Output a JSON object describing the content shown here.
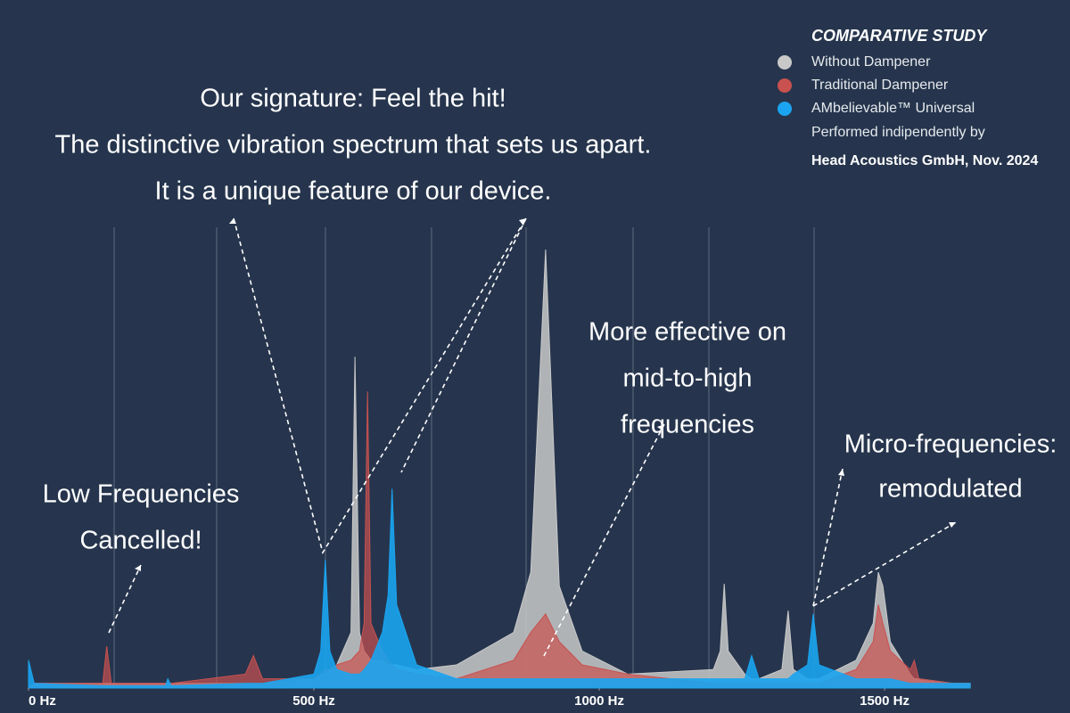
{
  "chart_data": {
    "type": "area",
    "headline": [
      "Our signature: Feel the hit!",
      "The distinctive vibration spectrum that sets us apart.",
      "It is a unique feature of our device."
    ],
    "annotations": [
      [
        "Low Frequencies",
        "Cancelled!"
      ],
      [
        "More effective on",
        "mid-to-high",
        "frequencies"
      ],
      [
        "Micro-frequencies:",
        "remodulated"
      ]
    ],
    "legend_title": "COMPARATIVE STUDY",
    "source": [
      "Performed indipendently by",
      "Head Acoustics GmbH, Nov. 2024"
    ],
    "x": [
      0,
      10,
      130,
      137,
      145,
      240,
      244,
      250,
      380,
      394,
      410,
      500,
      512,
      520,
      528,
      540,
      565,
      572,
      580,
      588,
      594,
      600,
      620,
      630,
      637,
      645,
      680,
      750,
      850,
      880,
      906,
      930,
      970,
      1050,
      1200,
      1212,
      1219,
      1226,
      1255,
      1267,
      1280,
      1320,
      1331,
      1340,
      1365,
      1375,
      1385,
      1450,
      1480,
      1489,
      1497,
      1510,
      1545,
      1552,
      1560,
      1620,
      1650
    ],
    "series": [
      {
        "name": "Without Dampener",
        "color": "#c9c9c9",
        "values": [
          0,
          1,
          1,
          1,
          1,
          1,
          1,
          1,
          1,
          1,
          1,
          2,
          3,
          3,
          4,
          5,
          12,
          71.5,
          12,
          8,
          7,
          6,
          6,
          5,
          5,
          5,
          4,
          5,
          12,
          25,
          94.6,
          22,
          8,
          3,
          4,
          8,
          22.5,
          8,
          3,
          2,
          2,
          4,
          16.7,
          4,
          2,
          2,
          2,
          6,
          14,
          25,
          22,
          10,
          3,
          2,
          2,
          1,
          1
        ]
      },
      {
        "name": "Traditional Dampener",
        "color": "#c9514f",
        "values": [
          0,
          1,
          1,
          9,
          1,
          1,
          1,
          1,
          3,
          7,
          2,
          2,
          3,
          4,
          4,
          5,
          6,
          7,
          8,
          14,
          64,
          14,
          8,
          6,
          5,
          4,
          3,
          2,
          6,
          12,
          16,
          10,
          5,
          3,
          1,
          1,
          1,
          1,
          1,
          1,
          1,
          1,
          1,
          1,
          1,
          1,
          1,
          4,
          10,
          18,
          14,
          8,
          4,
          6,
          2,
          1,
          1
        ]
      },
      {
        "name": "AMbelievable™ Universal",
        "color": "#1ba4f0",
        "values": [
          6,
          1,
          0.5,
          0.5,
          0.5,
          0.5,
          2,
          0.5,
          1,
          1,
          1,
          3,
          8,
          27.7,
          8,
          4,
          3,
          3,
          3,
          4,
          5,
          6,
          12,
          20,
          43,
          18,
          5,
          2,
          2,
          2,
          2,
          2,
          2,
          2,
          2,
          2,
          2,
          2,
          2,
          7,
          2,
          2,
          2,
          3,
          5,
          16,
          5,
          2,
          2,
          2,
          2,
          2,
          1,
          1,
          1,
          1,
          1
        ]
      }
    ],
    "xlim": [
      0,
      1653
    ],
    "ylim": [
      0,
      100
    ],
    "xticks": [
      {
        "value": 0,
        "label": "0 Hz"
      },
      {
        "value": 500,
        "label": "500 Hz"
      },
      {
        "value": 1000,
        "label": "1000 Hz"
      },
      {
        "value": 1500,
        "label": "1500 Hz"
      }
    ]
  }
}
